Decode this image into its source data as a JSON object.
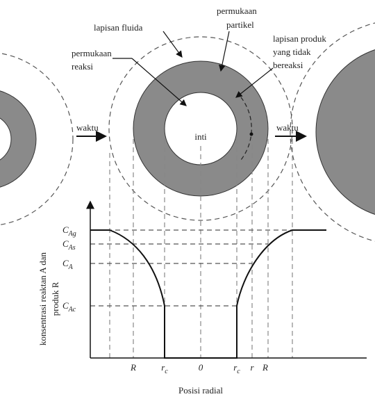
{
  "labels": {
    "fluid_layer": "lapisan fluida",
    "particle_surface": [
      "permukaan",
      "partikel"
    ],
    "unreacted_product_layer": [
      "lapisan produk",
      "yang tidak",
      "bereaksi"
    ],
    "reaction_surface": [
      "permukaan",
      "reaksi"
    ],
    "core": "inti",
    "time_left": "waktu",
    "time_right": "waktu"
  },
  "axes": {
    "y_label": [
      "konsentrasi reaktan A dan",
      "produk R"
    ],
    "x_label": "Posisi radial",
    "y_ticks": [
      {
        "symbol": "C",
        "subscript": "Ag"
      },
      {
        "symbol": "C",
        "subscript": "As"
      },
      {
        "symbol": "C",
        "subscript": "A"
      },
      {
        "symbol": "C",
        "subscript": "Ac"
      }
    ],
    "x_ticks": [
      {
        "symbol": "R"
      },
      {
        "symbol": "r",
        "subscript": "c"
      },
      {
        "symbol": "0"
      },
      {
        "symbol": "r",
        "subscript": "c"
      },
      {
        "symbol": "r"
      },
      {
        "symbol": "R"
      }
    ]
  }
}
